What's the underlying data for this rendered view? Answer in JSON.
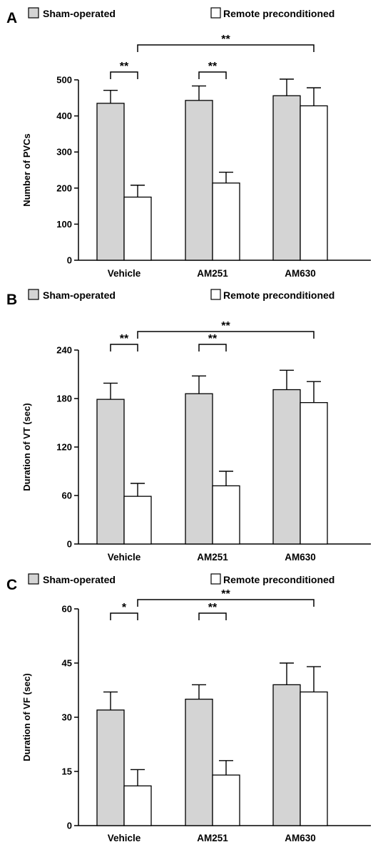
{
  "legend": {
    "sham": "Sham-operated",
    "remote": "Remote preconditioned"
  },
  "colors": {
    "sham": "#d4d4d4",
    "remote": "#ffffff",
    "stroke": "#000000"
  },
  "chart_data": [
    {
      "type": "bar",
      "panel_label": "A",
      "ylabel": "Number of PVCs",
      "ylim": [
        0,
        500
      ],
      "yticks": [
        0,
        100,
        200,
        300,
        400,
        500
      ],
      "categories": [
        "Vehicle",
        "AM251",
        "AM630"
      ],
      "series": [
        {
          "name": "Sham-operated",
          "values": [
            435,
            443,
            456
          ],
          "errors": [
            36,
            40,
            46
          ]
        },
        {
          "name": "Remote preconditioned",
          "values": [
            175,
            214,
            428
          ],
          "errors": [
            33,
            30,
            50
          ]
        }
      ],
      "annotations": [
        {
          "label": "**",
          "from": [
            0,
            0
          ],
          "to": [
            0,
            1
          ]
        },
        {
          "label": "**",
          "from": [
            1,
            0
          ],
          "to": [
            1,
            1
          ]
        },
        {
          "label": "**",
          "from": [
            0,
            1
          ],
          "to": [
            2,
            1
          ]
        }
      ]
    },
    {
      "type": "bar",
      "panel_label": "B",
      "ylabel": "Duration of VT (sec)",
      "ylim": [
        0,
        240
      ],
      "yticks": [
        0,
        60,
        120,
        180,
        240
      ],
      "categories": [
        "Vehicle",
        "AM251",
        "AM630"
      ],
      "series": [
        {
          "name": "Sham-operated",
          "values": [
            179,
            186,
            191
          ],
          "errors": [
            20,
            22,
            24
          ]
        },
        {
          "name": "Remote preconditioned",
          "values": [
            59,
            72,
            175
          ],
          "errors": [
            16,
            18,
            26
          ]
        }
      ],
      "annotations": [
        {
          "label": "**",
          "from": [
            0,
            0
          ],
          "to": [
            0,
            1
          ]
        },
        {
          "label": "**",
          "from": [
            1,
            0
          ],
          "to": [
            1,
            1
          ]
        },
        {
          "label": "**",
          "from": [
            0,
            1
          ],
          "to": [
            2,
            1
          ]
        }
      ]
    },
    {
      "type": "bar",
      "panel_label": "C",
      "ylabel": "Duration of VF (sec)",
      "ylim": [
        0,
        60
      ],
      "yticks": [
        0,
        15,
        30,
        45,
        60
      ],
      "categories": [
        "Vehicle",
        "AM251",
        "AM630"
      ],
      "series": [
        {
          "name": "Sham-operated",
          "values": [
            32,
            35,
            39
          ],
          "errors": [
            5,
            4,
            6
          ]
        },
        {
          "name": "Remote preconditioned",
          "values": [
            11,
            14,
            37
          ],
          "errors": [
            4.5,
            4,
            7
          ]
        }
      ],
      "annotations": [
        {
          "label": "*",
          "from": [
            0,
            0
          ],
          "to": [
            0,
            1
          ]
        },
        {
          "label": "**",
          "from": [
            1,
            0
          ],
          "to": [
            1,
            1
          ]
        },
        {
          "label": "**",
          "from": [
            0,
            1
          ],
          "to": [
            2,
            1
          ]
        }
      ]
    }
  ]
}
